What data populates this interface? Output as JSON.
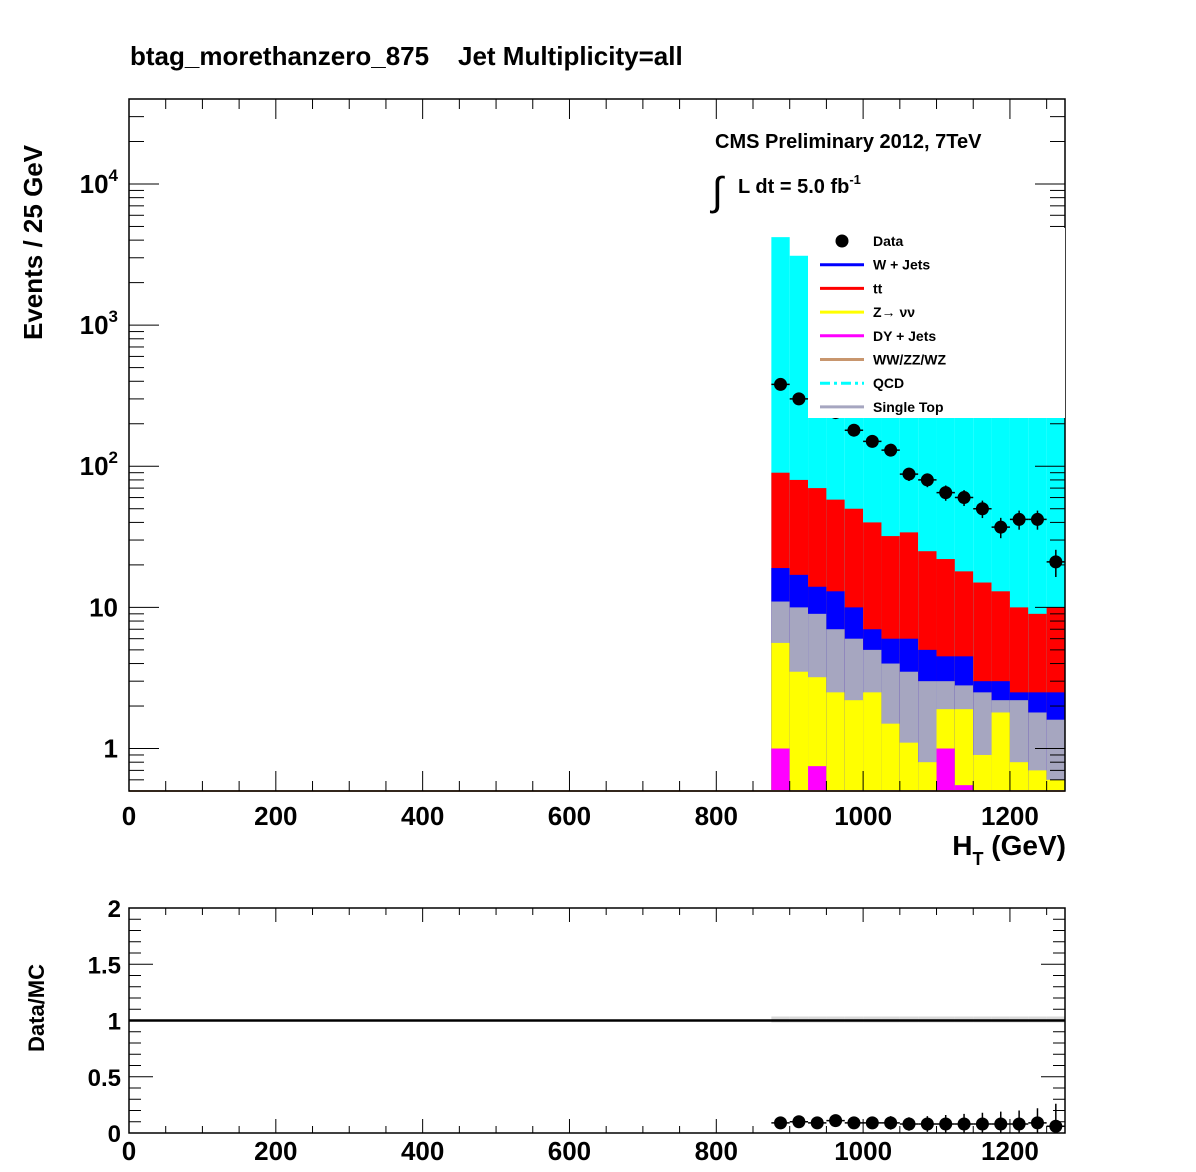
{
  "chart_data": [
    {
      "type": "bar",
      "stacked": true,
      "title": "btag_morethanzero_875    Jet Multiplicity=all",
      "xlabel_main": "H",
      "xlabel_sub": "T",
      "xlabel_unit": " (GeV)",
      "ylabel": "Events / 25 GeV",
      "xlim": [
        0,
        1275
      ],
      "ylim": [
        0.5,
        40000
      ],
      "y_log": true,
      "bin_width": 25,
      "x_ticks": [
        "0",
        "200",
        "400",
        "600",
        "800",
        "1000",
        "1200"
      ],
      "x_tick_values": [
        0,
        200,
        400,
        600,
        800,
        1000,
        1200
      ],
      "y_tick_labels": [
        {
          "value": 1,
          "base": "1",
          "exp": ""
        },
        {
          "value": 10,
          "base": "10",
          "exp": ""
        },
        {
          "value": 100,
          "base": "10",
          "exp": "2"
        },
        {
          "value": 1000,
          "base": "10",
          "exp": "3"
        },
        {
          "value": 10000,
          "base": "10",
          "exp": "4"
        }
      ],
      "annotation_line1": "CMS Preliminary 2012, 7TeV",
      "annotation_integral": "∫",
      "annotation_lumi": "L dt = 5.0 fb",
      "annotation_lumi_exp": "-1",
      "x_bins": [
        875,
        900,
        925,
        950,
        975,
        1000,
        1025,
        1050,
        1075,
        1100,
        1125,
        1150,
        1175,
        1200,
        1225,
        1250
      ],
      "stack_top_to_bottom_cumulative": {
        "QCD_total": [
          4200,
          3100,
          220,
          220,
          220,
          220,
          220,
          220,
          220,
          220,
          220,
          220,
          220,
          220,
          220,
          220
        ],
        "ttbar": [
          90,
          80,
          70,
          58,
          50,
          40,
          32,
          34,
          25,
          22,
          18,
          15,
          13,
          10,
          9,
          10
        ],
        "W_Jets": [
          19,
          17,
          14,
          13,
          10,
          7,
          6,
          6,
          5,
          4.5,
          4.5,
          3,
          3,
          2.5,
          2.5,
          2.5
        ],
        "Single_Top": [
          11,
          10,
          9,
          7,
          6,
          5,
          4,
          3.5,
          3,
          3,
          2.8,
          2.5,
          2.2,
          2.2,
          1.8,
          1.6
        ],
        "Z_nunu": [
          5.6,
          3.5,
          3.2,
          2.5,
          2.2,
          2.5,
          1.5,
          1.1,
          0.8,
          1.9,
          1.9,
          0.9,
          1.8,
          0.8,
          0.7,
          0.6
        ],
        "DY_Jets": [
          1.0,
          0.0,
          0.75,
          0.0,
          0.0,
          0.0,
          0.0,
          0.0,
          0.0,
          1.0,
          0.55,
          0.0,
          0.0,
          0.0,
          0.0,
          0.0
        ]
      },
      "series_data": {
        "name": "Data",
        "x": [
          887.5,
          912.5,
          937.5,
          962.5,
          987.5,
          1012.5,
          1037.5,
          1062.5,
          1087.5,
          1112.5,
          1137.5,
          1162.5,
          1187.5,
          1212.5,
          1237.5,
          1262.5
        ],
        "y": [
          380,
          300,
          250,
          240,
          180,
          150,
          130,
          88,
          80,
          65,
          60,
          50,
          37,
          42,
          42,
          21
        ]
      },
      "legend": [
        {
          "name": "Data",
          "kind": "marker",
          "color": "#000000"
        },
        {
          "name": "W + Jets",
          "kind": "line",
          "color": "#0000ff"
        },
        {
          "name": "tt",
          "kind": "line",
          "color": "#ff0000"
        },
        {
          "name": "Z→ νν",
          "kind": "line",
          "color": "#ffff00"
        },
        {
          "name": "DY + Jets",
          "kind": "line",
          "color": "#ff00ff"
        },
        {
          "name": "WW/ZZ/WZ",
          "kind": "line",
          "color": "#c8966e"
        },
        {
          "name": "QCD",
          "kind": "dashdot",
          "color": "#00ffff"
        },
        {
          "name": "Single Top",
          "kind": "line",
          "color": "#a6a6c0"
        }
      ],
      "legend_placement": "top-right",
      "colors": {
        "QCD": "#00ffff",
        "ttbar": "#ff0000",
        "W_Jets": "#0000ff",
        "Single_Top": "#a6a6c0",
        "Z_nunu": "#ffff00",
        "DY_Jets": "#ff00ff",
        "Diboson": "#c8966e"
      }
    },
    {
      "type": "scatter",
      "ylabel": "Data/MC",
      "xlim": [
        0,
        1275
      ],
      "ylim": [
        0,
        2
      ],
      "x_ticks": [
        "0",
        "200",
        "400",
        "600",
        "800",
        "1000",
        "1200"
      ],
      "x_tick_values": [
        0,
        200,
        400,
        600,
        800,
        1000,
        1200
      ],
      "y_ticks": [
        "0",
        "0.5",
        "1",
        "1.5",
        "2"
      ],
      "y_tick_values": [
        0,
        0.5,
        1,
        1.5,
        2
      ],
      "reference_line": 1,
      "ratio": {
        "x": [
          887.5,
          912.5,
          937.5,
          962.5,
          987.5,
          1012.5,
          1037.5,
          1062.5,
          1087.5,
          1112.5,
          1137.5,
          1162.5,
          1187.5,
          1212.5,
          1237.5,
          1262.5
        ],
        "y": [
          0.09,
          0.1,
          0.09,
          0.11,
          0.09,
          0.09,
          0.09,
          0.08,
          0.08,
          0.08,
          0.08,
          0.08,
          0.08,
          0.08,
          0.09,
          0.06
        ],
        "err": [
          0.02,
          0.03,
          0.03,
          0.04,
          0.04,
          0.05,
          0.06,
          0.06,
          0.07,
          0.08,
          0.09,
          0.1,
          0.11,
          0.12,
          0.13,
          0.2
        ]
      },
      "mc_band_y": 1
    }
  ]
}
